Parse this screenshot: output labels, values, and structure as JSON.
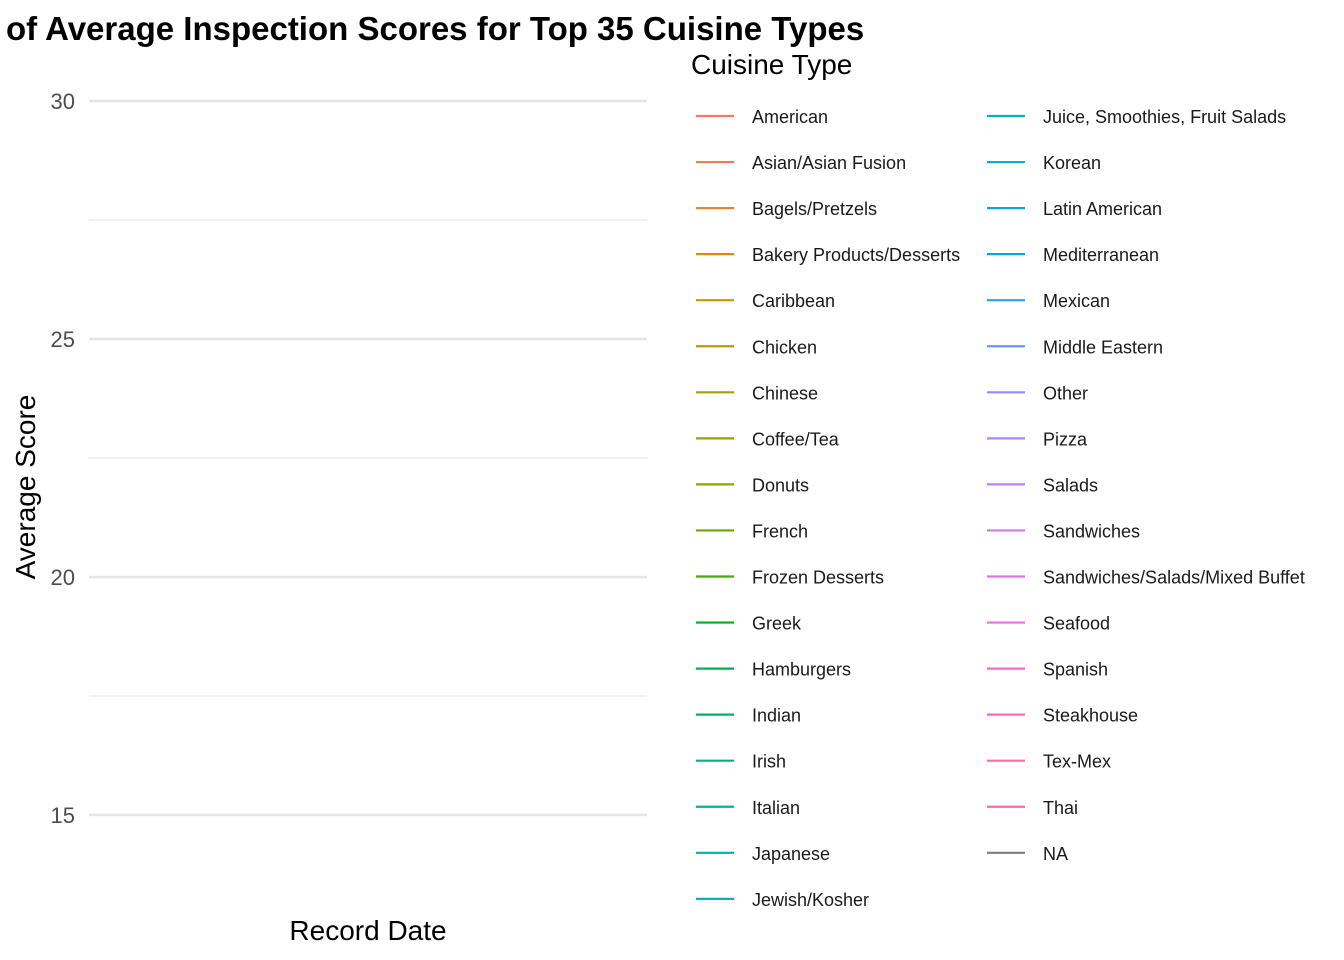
{
  "chart_data": {
    "type": "line",
    "title": "of Average Inspection Scores for Top 35 Cuisine Types",
    "xlabel": "Record Date",
    "ylabel": "Average Score",
    "ylim": [
      13.5,
      30.5
    ],
    "yticks": [
      "15",
      "20",
      "25",
      "30"
    ],
    "ytick_values": [
      15,
      20,
      25,
      30
    ],
    "grid": true,
    "legend_title": "Cuisine Type",
    "legend_position": "right",
    "series": [
      {
        "name": "American",
        "color": "#F8766D",
        "values": []
      },
      {
        "name": "Asian/Asian Fusion",
        "color": "#F07E4F",
        "values": []
      },
      {
        "name": "Bagels/Pretzels",
        "color": "#E6852B",
        "values": []
      },
      {
        "name": "Bakery Products/Desserts",
        "color": "#DA8C00",
        "values": []
      },
      {
        "name": "Caribbean",
        "color": "#CD9200",
        "values": []
      },
      {
        "name": "Chicken",
        "color": "#BE9700",
        "values": []
      },
      {
        "name": "Chinese",
        "color": "#AD9C00",
        "values": []
      },
      {
        "name": "Coffee/Tea",
        "color": "#9AA100",
        "values": []
      },
      {
        "name": "Donuts",
        "color": "#84A500",
        "values": []
      },
      {
        "name": "French",
        "color": "#6AA800",
        "values": []
      },
      {
        "name": "Frozen Desserts",
        "color": "#45AB00",
        "values": []
      },
      {
        "name": "Greek",
        "color": "#00AD22",
        "values": []
      },
      {
        "name": "Hamburgers",
        "color": "#00AF4B",
        "values": []
      },
      {
        "name": "Indian",
        "color": "#00B167",
        "values": []
      },
      {
        "name": "Irish",
        "color": "#00B27F",
        "values": []
      },
      {
        "name": "Italian",
        "color": "#00B394",
        "values": []
      },
      {
        "name": "Japanese",
        "color": "#00B3A8",
        "values": []
      },
      {
        "name": "Jewish/Kosher",
        "color": "#00B3BA",
        "values": []
      },
      {
        "name": "Juice, Smoothies, Fruit Salads",
        "color": "#00B1CA",
        "values": []
      },
      {
        "name": "Korean",
        "color": "#00AED8",
        "values": []
      },
      {
        "name": "Latin American",
        "color": "#00AAE5",
        "values": []
      },
      {
        "name": "Mediterranean",
        "color": "#00A5F0",
        "values": []
      },
      {
        "name": "Mexican",
        "color": "#279FF8",
        "values": []
      },
      {
        "name": "Middle Eastern",
        "color": "#6B96FD",
        "values": []
      },
      {
        "name": "Other",
        "color": "#8F8EFF",
        "values": []
      },
      {
        "name": "Pizza",
        "color": "#AB85FF",
        "values": []
      },
      {
        "name": "Salads",
        "color": "#C27CFB",
        "values": []
      },
      {
        "name": "Sandwiches",
        "color": "#D575F5",
        "values": []
      },
      {
        "name": "Sandwiches/Salads/Mixed Buffet",
        "color": "#E46FEC",
        "values": []
      },
      {
        "name": "Seafood",
        "color": "#F06AE0",
        "values": []
      },
      {
        "name": "Spanish",
        "color": "#F967D2",
        "values": []
      },
      {
        "name": "Steakhouse",
        "color": "#FE67C2",
        "values": []
      },
      {
        "name": "Tex-Mex",
        "color": "#FF69B0",
        "values": []
      },
      {
        "name": "Thai",
        "color": "#FF6C9C",
        "values": []
      },
      {
        "name": "NA",
        "color": "#7F7F7F",
        "values": []
      }
    ]
  }
}
